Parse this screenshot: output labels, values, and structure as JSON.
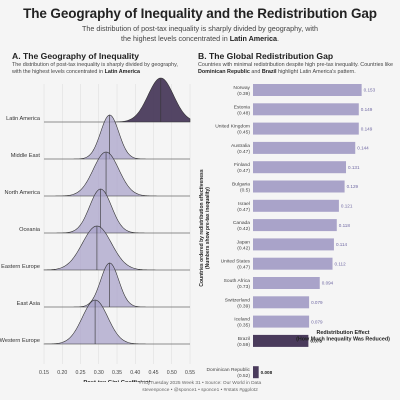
{
  "header": {
    "title": "The Geography of Inequality and the Redistribution Gap",
    "subtitle_pre": "The distribution of post-tax inequality is sharply divided by geography, with the highest levels concentrated in ",
    "subtitle_bold": "Latin America",
    "subtitle_post": "."
  },
  "panel_a": {
    "title": "A. The Geography of Inequality",
    "subtitle_pre": "The distribution of post-tax inequality is sharply divided by geography, with the highest levels concentrated in ",
    "subtitle_bold": "Latin America"
  },
  "panel_b": {
    "title": "B. The Global Redistribution Gap",
    "subtitle_pre": "Countries with minimal redistribution despite high pre-tax inequality. Countries like ",
    "subtitle_bold1": "Dominican Republic",
    "subtitle_mid": " and ",
    "subtitle_bold2": "Brazil",
    "subtitle_post": " highlight Latin America's pattern."
  },
  "colors": {
    "ridge_default": "#a9a3c9",
    "ridge_highlight": "#4a3b5c",
    "bar_default": "#a9a3c9",
    "bar_highlight": "#4a3b5c",
    "bar_label": "#6f68a3"
  },
  "caption": {
    "line1": "#TidyTuesday 2025 Week 31 • Source: Our World in Data",
    "line2": "stevenponce • @sponce1 • sponce1 • #rstats #ggplot2"
  },
  "chart_data": [
    {
      "type": "ridgeline",
      "xlabel": "Post-tax Gini Coefficient",
      "ylabel": "",
      "xlim": [
        0.15,
        0.55
      ],
      "xticks": [
        "0.15",
        "0.20",
        "0.25",
        "0.30",
        "0.35",
        "0.40",
        "0.45",
        "0.50",
        "0.55"
      ],
      "series": [
        {
          "name": "Latin America",
          "mean": 0.47,
          "sd": 0.035,
          "highlight": true
        },
        {
          "name": "Middle East",
          "mean": 0.33,
          "sd": 0.025,
          "highlight": false
        },
        {
          "name": "North America",
          "mean": 0.32,
          "sd": 0.035,
          "highlight": false
        },
        {
          "name": "Oceania",
          "mean": 0.305,
          "sd": 0.03,
          "highlight": false
        },
        {
          "name": "Eastern Europe",
          "mean": 0.295,
          "sd": 0.04,
          "highlight": false
        },
        {
          "name": "East Asia",
          "mean": 0.33,
          "sd": 0.025,
          "highlight": false
        },
        {
          "name": "Western Europe",
          "mean": 0.29,
          "sd": 0.035,
          "highlight": false
        }
      ]
    },
    {
      "type": "bar",
      "orientation": "horizontal",
      "xlabel": "Redistribution Effect\n(How Much Inequality Was Reduced)",
      "ylabel": "Countries ordered by redistribution effectiveness\n(Numbers show pre-tax inequality)",
      "xlim": [
        0,
        0.2
      ],
      "categories": [
        "Norway",
        "Estonia",
        "United Kingdom",
        "Australia",
        "Finland",
        "Bulgaria",
        "Israel",
        "Canada",
        "Japan",
        "United States",
        "South Africa",
        "Switzerland",
        "Iceland",
        "Brazil",
        "Dominican Republic"
      ],
      "pretax": [
        "(0.39)",
        "(0.48)",
        "(0.45)",
        "(0.47)",
        "(0.47)",
        "(0.5)",
        "(0.47)",
        "(0.42)",
        "(0.42)",
        "(0.47)",
        "(0.73)",
        "(0.39)",
        "(0.35)",
        "(0.59)",
        "(0.52)"
      ],
      "values": [
        0.153,
        0.149,
        0.149,
        0.144,
        0.131,
        0.129,
        0.121,
        0.118,
        0.114,
        0.112,
        0.094,
        0.079,
        0.079,
        0.078,
        0.008
      ],
      "value_labels": [
        "0.153",
        "0.149",
        "0.149",
        "0.144",
        "0.131",
        "0.129",
        "0.121",
        "0.118",
        "0.114",
        "0.112",
        "0.094",
        "0.079",
        "0.079",
        "0.078",
        "0.008"
      ],
      "highlight": [
        false,
        false,
        false,
        false,
        false,
        false,
        false,
        false,
        false,
        false,
        false,
        false,
        false,
        true,
        true
      ]
    }
  ]
}
